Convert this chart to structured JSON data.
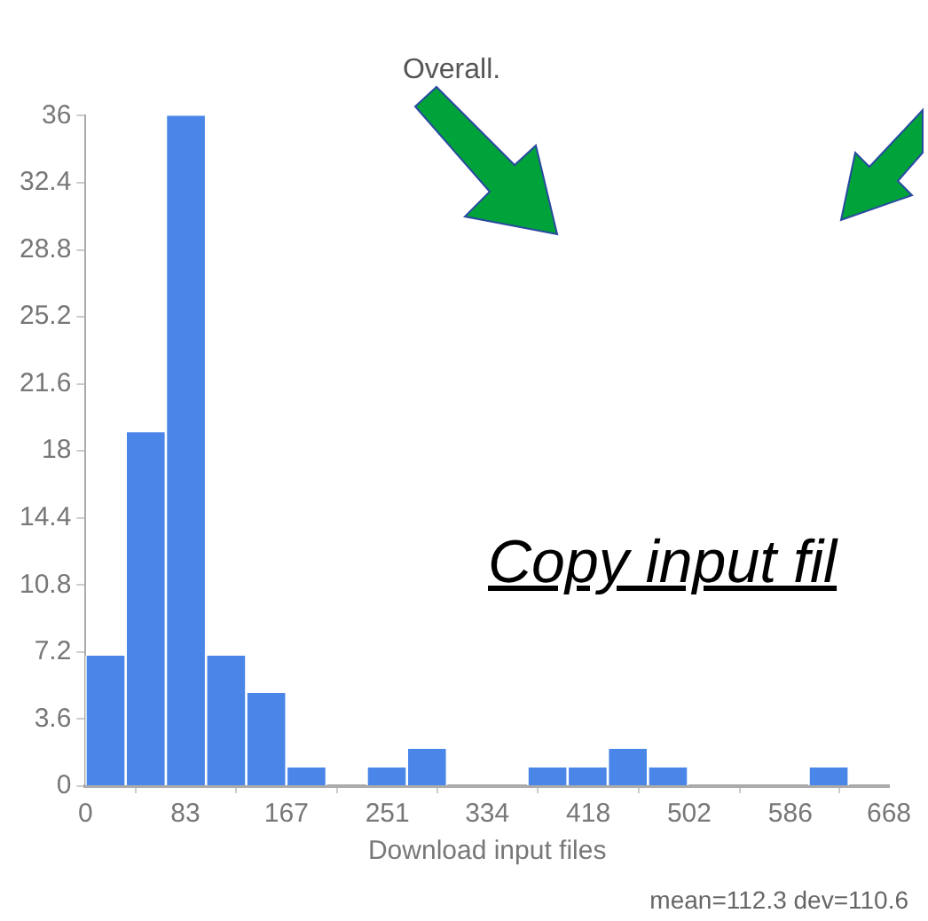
{
  "chart_data": {
    "type": "histogram",
    "title": "Overall.",
    "xlabel": "Download input files",
    "bins": [
      0,
      33.4,
      66.8,
      100.2,
      133.6,
      167,
      200.4,
      233.8,
      267.2,
      300.6,
      334,
      367.4,
      400.8,
      434.2,
      467.6,
      501,
      534.4,
      567.8,
      601.2,
      634.6,
      668
    ],
    "values": [
      7,
      19,
      36,
      7,
      5,
      1,
      0,
      1,
      2,
      0,
      0,
      1,
      1,
      2,
      1,
      0,
      0,
      0,
      1,
      0
    ],
    "color": "#4a86e8",
    "xlim": [
      0,
      668
    ],
    "xticks": [
      0,
      83,
      167,
      251,
      334,
      418,
      502,
      586,
      668
    ],
    "ylim": [
      0,
      36
    ],
    "yticks": [
      0,
      3.6,
      7.2,
      10.8,
      14.4,
      18,
      21.6,
      25.2,
      28.8,
      32.4,
      36
    ],
    "grid": false,
    "annotations": [
      "Copy input fil",
      "mean=112.3 dev=110.6"
    ]
  }
}
